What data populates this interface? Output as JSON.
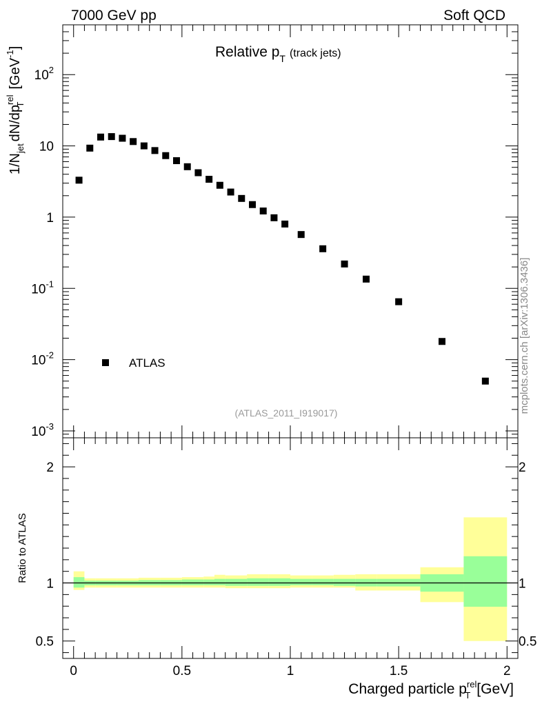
{
  "header": {
    "left": "7000 GeV pp",
    "right": "Soft QCD"
  },
  "side_label": "mcplots.cern.ch [arXiv:1306.3436]",
  "watermark": "(ATLAS_2011_I919017)",
  "chart_data": [
    {
      "type": "scatter",
      "title": "Relative p",
      "title_sub": "T",
      "title_suffix": "(track jets)",
      "ylabel": "1/N",
      "ylabel_parts": {
        "n_sub": "jet",
        "mid": "dN/dp",
        "p_sup": "rel",
        "p_sub": "T",
        "unit": "[GeV",
        "unit_sup": "-1",
        "unit_close": "]"
      },
      "yscale": "log",
      "ylim": [
        0.0008,
        500
      ],
      "xlim": [
        -0.05,
        2.05
      ],
      "y_ticks": [
        {
          "value": 0.001,
          "base": "10",
          "exp": "-3"
        },
        {
          "value": 0.01,
          "base": "10",
          "exp": "-2"
        },
        {
          "value": 0.1,
          "base": "10",
          "exp": "-1"
        },
        {
          "value": 1,
          "base": "1",
          "exp": ""
        },
        {
          "value": 10,
          "base": "10",
          "exp": ""
        },
        {
          "value": 100,
          "base": "10",
          "exp": "2"
        }
      ],
      "legend": {
        "placement": "bottom-left",
        "entries": [
          "ATLAS"
        ]
      },
      "series": [
        {
          "name": "ATLAS",
          "color": "#000000",
          "x": [
            0.025,
            0.075,
            0.125,
            0.175,
            0.225,
            0.275,
            0.325,
            0.375,
            0.425,
            0.475,
            0.525,
            0.575,
            0.625,
            0.675,
            0.725,
            0.775,
            0.825,
            0.875,
            0.925,
            0.975,
            1.05,
            1.15,
            1.25,
            1.35,
            1.5,
            1.7,
            1.9
          ],
          "y": [
            3.3,
            9.3,
            13.3,
            13.5,
            12.8,
            11.5,
            10.0,
            8.6,
            7.3,
            6.2,
            5.1,
            4.2,
            3.4,
            2.8,
            2.25,
            1.83,
            1.5,
            1.22,
            0.98,
            0.8,
            0.57,
            0.36,
            0.22,
            0.135,
            0.065,
            0.018,
            0.005
          ]
        }
      ]
    },
    {
      "type": "area",
      "ylabel": "Ratio to ATLAS",
      "xlabel": "Charged particle p",
      "xlabel_parts": {
        "sup": "rel",
        "sub": "T",
        "unit": "[GeV]"
      },
      "xlim": [
        -0.05,
        2.05
      ],
      "ylim": [
        0.35,
        2.25
      ],
      "x_ticks": [
        {
          "value": 0,
          "label": "0"
        },
        {
          "value": 0.5,
          "label": "0.5"
        },
        {
          "value": 1,
          "label": "1"
        },
        {
          "value": 1.5,
          "label": "1.5"
        },
        {
          "value": 2,
          "label": "2"
        }
      ],
      "y_ticks": [
        {
          "value": 0.5,
          "label": "0.5"
        },
        {
          "value": 1,
          "label": "1"
        },
        {
          "value": 2,
          "label": "2"
        }
      ],
      "reference_line": 1.0,
      "band_colors": {
        "outer": "#ffff99",
        "inner": "#99ff99"
      },
      "bins": [
        {
          "lo": 0.0,
          "hi": 0.05,
          "outer": [
            0.94,
            1.1
          ],
          "inner": [
            0.96,
            1.05
          ]
        },
        {
          "lo": 0.05,
          "hi": 0.1,
          "outer": [
            0.96,
            1.04
          ],
          "inner": [
            0.98,
            1.02
          ]
        },
        {
          "lo": 0.1,
          "hi": 0.2,
          "outer": [
            0.96,
            1.04
          ],
          "inner": [
            0.98,
            1.02
          ]
        },
        {
          "lo": 0.2,
          "hi": 0.3,
          "outer": [
            0.96,
            1.04
          ],
          "inner": [
            0.98,
            1.02
          ]
        },
        {
          "lo": 0.3,
          "hi": 0.4,
          "outer": [
            0.96,
            1.045
          ],
          "inner": [
            0.98,
            1.025
          ]
        },
        {
          "lo": 0.4,
          "hi": 0.5,
          "outer": [
            0.96,
            1.045
          ],
          "inner": [
            0.98,
            1.025
          ]
        },
        {
          "lo": 0.5,
          "hi": 0.6,
          "outer": [
            0.96,
            1.05
          ],
          "inner": [
            0.98,
            1.03
          ]
        },
        {
          "lo": 0.6,
          "hi": 0.65,
          "outer": [
            0.96,
            1.055
          ],
          "inner": [
            0.98,
            1.03
          ]
        },
        {
          "lo": 0.65,
          "hi": 0.7,
          "outer": [
            0.96,
            1.07
          ],
          "inner": [
            0.98,
            1.035
          ]
        },
        {
          "lo": 0.7,
          "hi": 0.8,
          "outer": [
            0.955,
            1.065
          ],
          "inner": [
            0.975,
            1.035
          ]
        },
        {
          "lo": 0.8,
          "hi": 0.9,
          "outer": [
            0.955,
            1.075
          ],
          "inner": [
            0.975,
            1.04
          ]
        },
        {
          "lo": 0.9,
          "hi": 1.0,
          "outer": [
            0.955,
            1.075
          ],
          "inner": [
            0.975,
            1.04
          ]
        },
        {
          "lo": 1.0,
          "hi": 1.1,
          "outer": [
            0.96,
            1.065
          ],
          "inner": [
            0.98,
            1.035
          ]
        },
        {
          "lo": 1.1,
          "hi": 1.2,
          "outer": [
            0.96,
            1.065
          ],
          "inner": [
            0.98,
            1.035
          ]
        },
        {
          "lo": 1.2,
          "hi": 1.3,
          "outer": [
            0.96,
            1.07
          ],
          "inner": [
            0.975,
            1.035
          ]
        },
        {
          "lo": 1.3,
          "hi": 1.4,
          "outer": [
            0.935,
            1.075
          ],
          "inner": [
            0.97,
            1.035
          ]
        },
        {
          "lo": 1.4,
          "hi": 1.6,
          "outer": [
            0.935,
            1.075
          ],
          "inner": [
            0.97,
            1.035
          ]
        },
        {
          "lo": 1.6,
          "hi": 1.8,
          "outer": [
            0.835,
            1.135
          ],
          "inner": [
            0.925,
            1.075
          ]
        },
        {
          "lo": 1.8,
          "hi": 2.0,
          "outer": [
            0.5,
            1.565
          ],
          "inner": [
            0.795,
            1.23
          ]
        }
      ]
    }
  ]
}
